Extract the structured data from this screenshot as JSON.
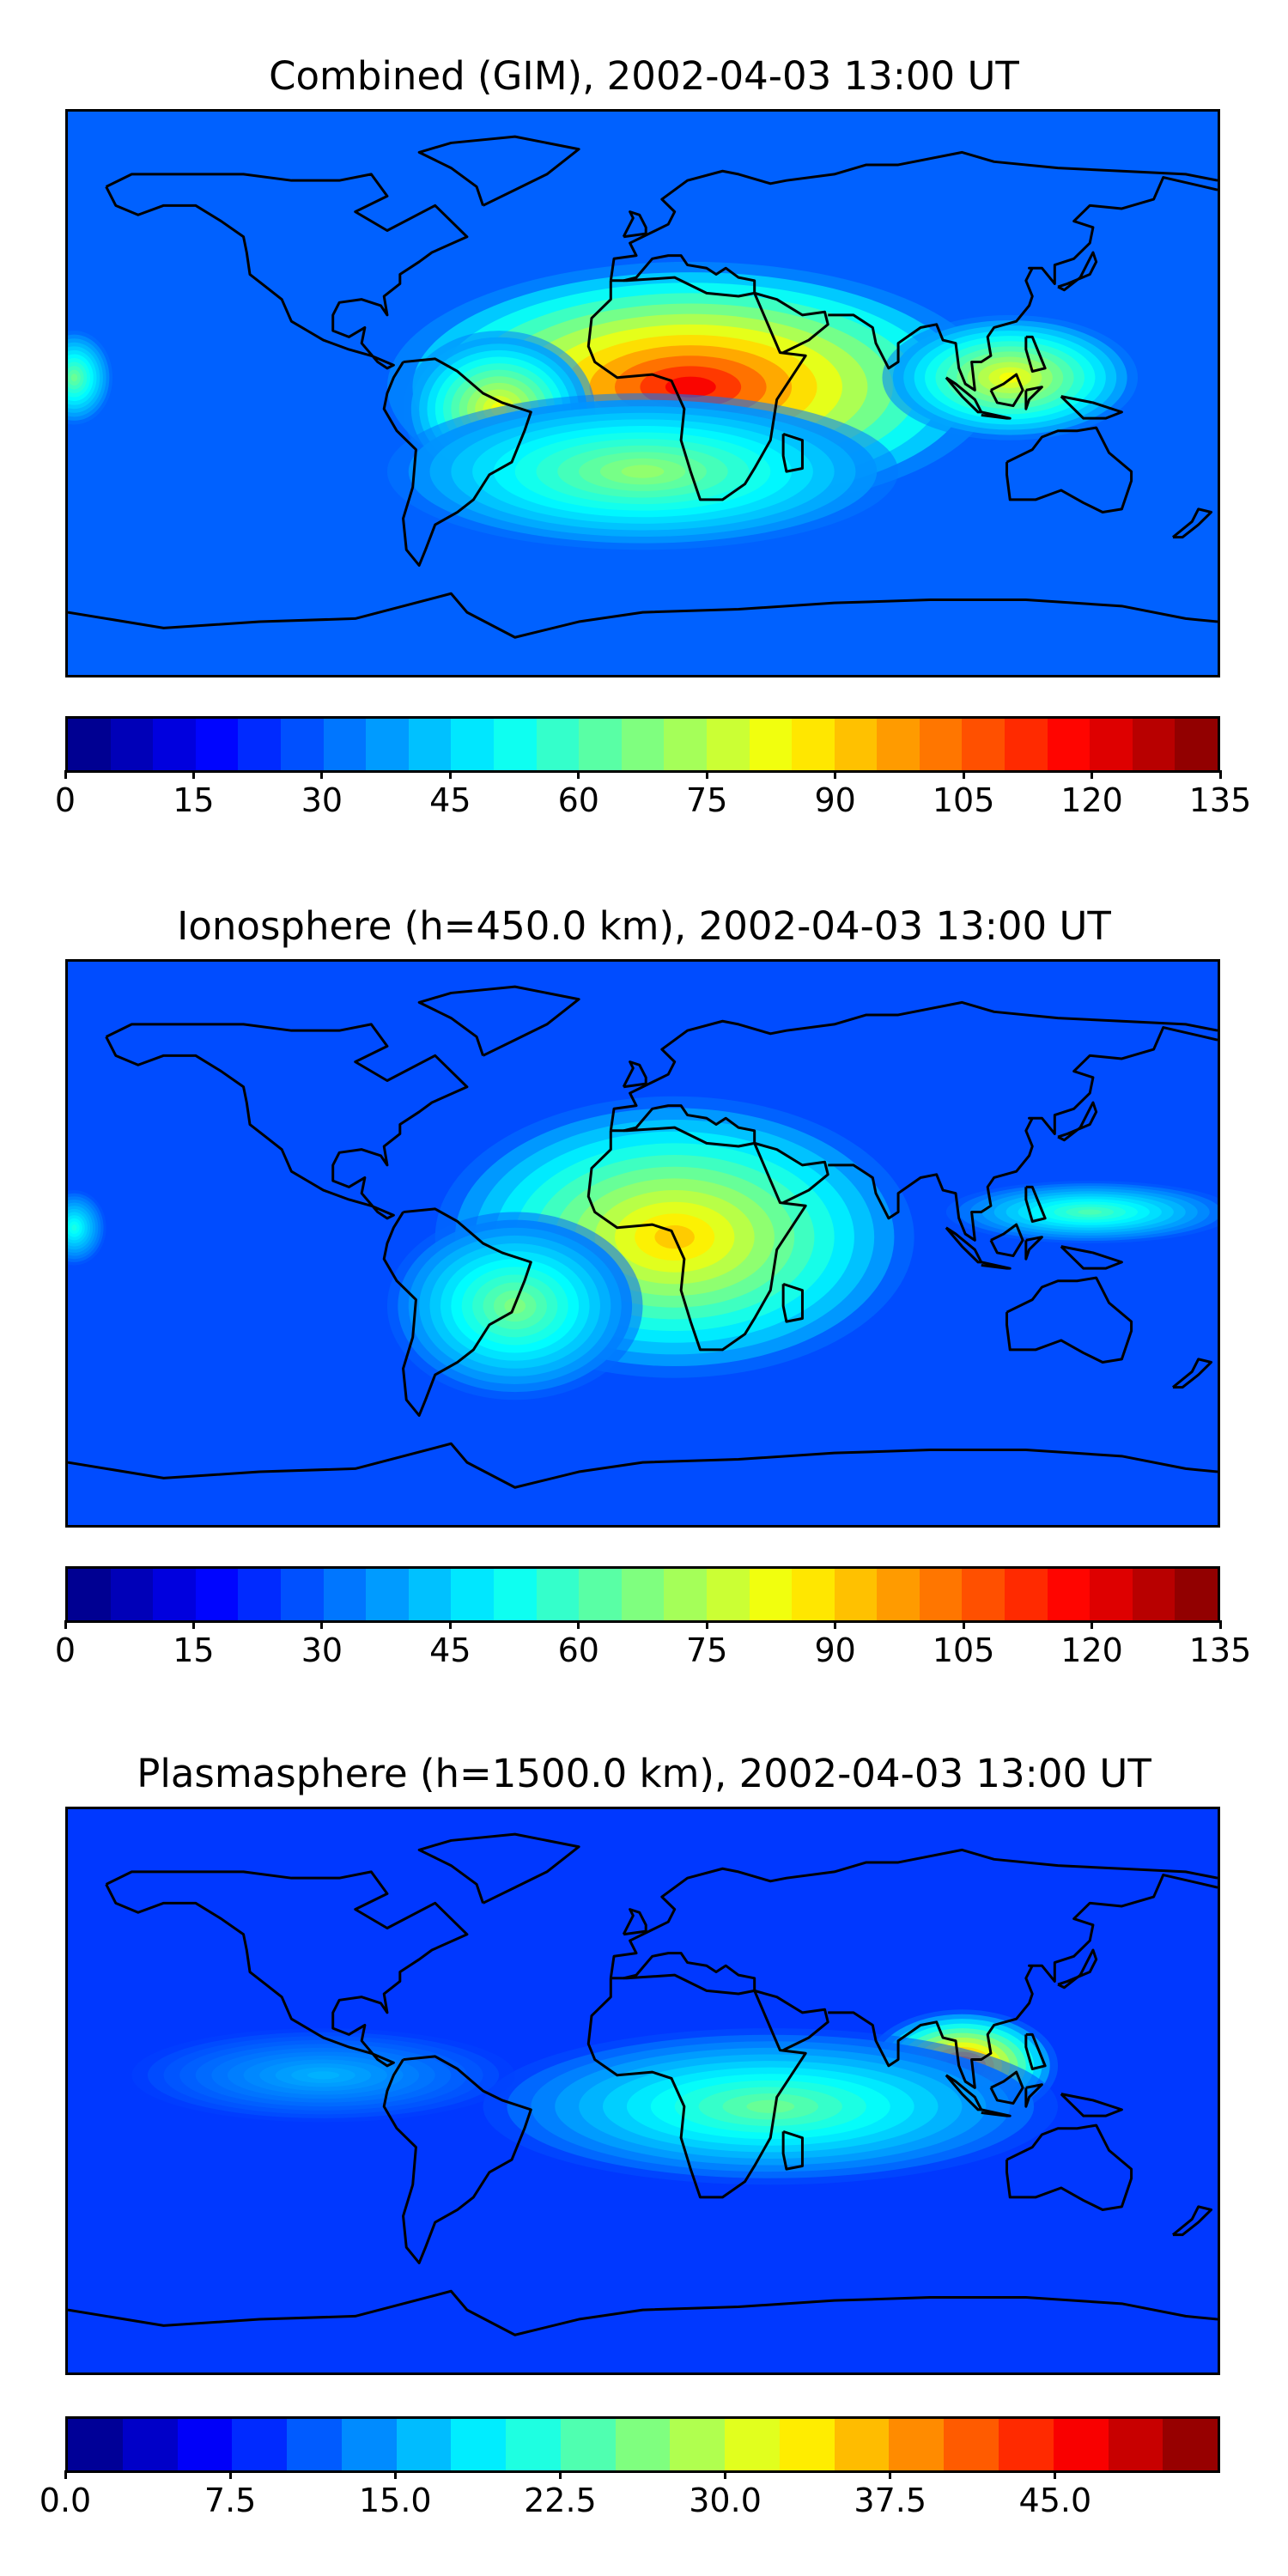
{
  "panels": [
    {
      "title": "Combined (GIM), 2002-04-03 13:00 UT",
      "colorbar": {
        "min": 0,
        "max": 135,
        "levels": 27,
        "ticks": [
          "0",
          "15",
          "30",
          "45",
          "60",
          "75",
          "90",
          "105",
          "120",
          "135"
        ],
        "tick_values": [
          0,
          15,
          30,
          45,
          60,
          75,
          90,
          105,
          120,
          135
        ]
      },
      "field": {
        "background_level": 0.22,
        "blobs": [
          {
            "lon": 15,
            "lat": 2,
            "rx": 95,
            "ry": 40,
            "level": 0.88
          },
          {
            "lon": 115,
            "lat": 5,
            "rx": 40,
            "ry": 20,
            "level": 0.62
          },
          {
            "lon": -45,
            "lat": -5,
            "rx": 30,
            "ry": 25,
            "level": 0.62
          },
          {
            "lon": 0,
            "lat": -25,
            "rx": 80,
            "ry": 25,
            "level": 0.52
          },
          {
            "lon": -178,
            "lat": 5,
            "rx": 12,
            "ry": 15,
            "level": 0.48
          }
        ]
      }
    },
    {
      "title": "Ionosphere  (h=450.0 km), 2002-04-03 13:00 UT",
      "colorbar": {
        "min": 0,
        "max": 135,
        "levels": 27,
        "ticks": [
          "0",
          "15",
          "30",
          "45",
          "60",
          "75",
          "90",
          "105",
          "120",
          "135"
        ],
        "tick_values": [
          0,
          15,
          30,
          45,
          60,
          75,
          90,
          105,
          120,
          135
        ]
      },
      "field": {
        "background_level": 0.2,
        "blobs": [
          {
            "lon": 10,
            "lat": 2,
            "rx": 75,
            "ry": 45,
            "level": 0.68
          },
          {
            "lon": 140,
            "lat": 10,
            "rx": 45,
            "ry": 10,
            "level": 0.45
          },
          {
            "lon": -40,
            "lat": -20,
            "rx": 40,
            "ry": 30,
            "level": 0.5
          },
          {
            "lon": -178,
            "lat": 5,
            "rx": 10,
            "ry": 12,
            "level": 0.4
          }
        ]
      }
    },
    {
      "title": "Plasmasphere (h=1500.0 km), 2002-04-03 13:00 UT",
      "colorbar": {
        "min": 0,
        "max": 52.5,
        "levels": 21,
        "ticks": [
          "0.0",
          "7.5",
          "15.0",
          "22.5",
          "30.0",
          "37.5",
          "45.0"
        ],
        "tick_values": [
          0,
          7.5,
          15,
          22.5,
          30,
          37.5,
          45
        ]
      },
      "field": {
        "background_level": 0.18,
        "blobs": [
          {
            "lon": 100,
            "lat": 8,
            "rx": 30,
            "ry": 18,
            "level": 0.82
          },
          {
            "lon": 40,
            "lat": -5,
            "rx": 90,
            "ry": 25,
            "level": 0.48
          },
          {
            "lon": -100,
            "lat": 5,
            "rx": 60,
            "ry": 15,
            "level": 0.3
          }
        ]
      }
    }
  ],
  "colormap": "jet",
  "colors": {
    "jet": [
      "#00007f",
      "#0000ff",
      "#007fff",
      "#00ffff",
      "#7fff7f",
      "#ffff00",
      "#ff7f00",
      "#ff0000",
      "#7f0000"
    ],
    "coastline": "#000000"
  }
}
